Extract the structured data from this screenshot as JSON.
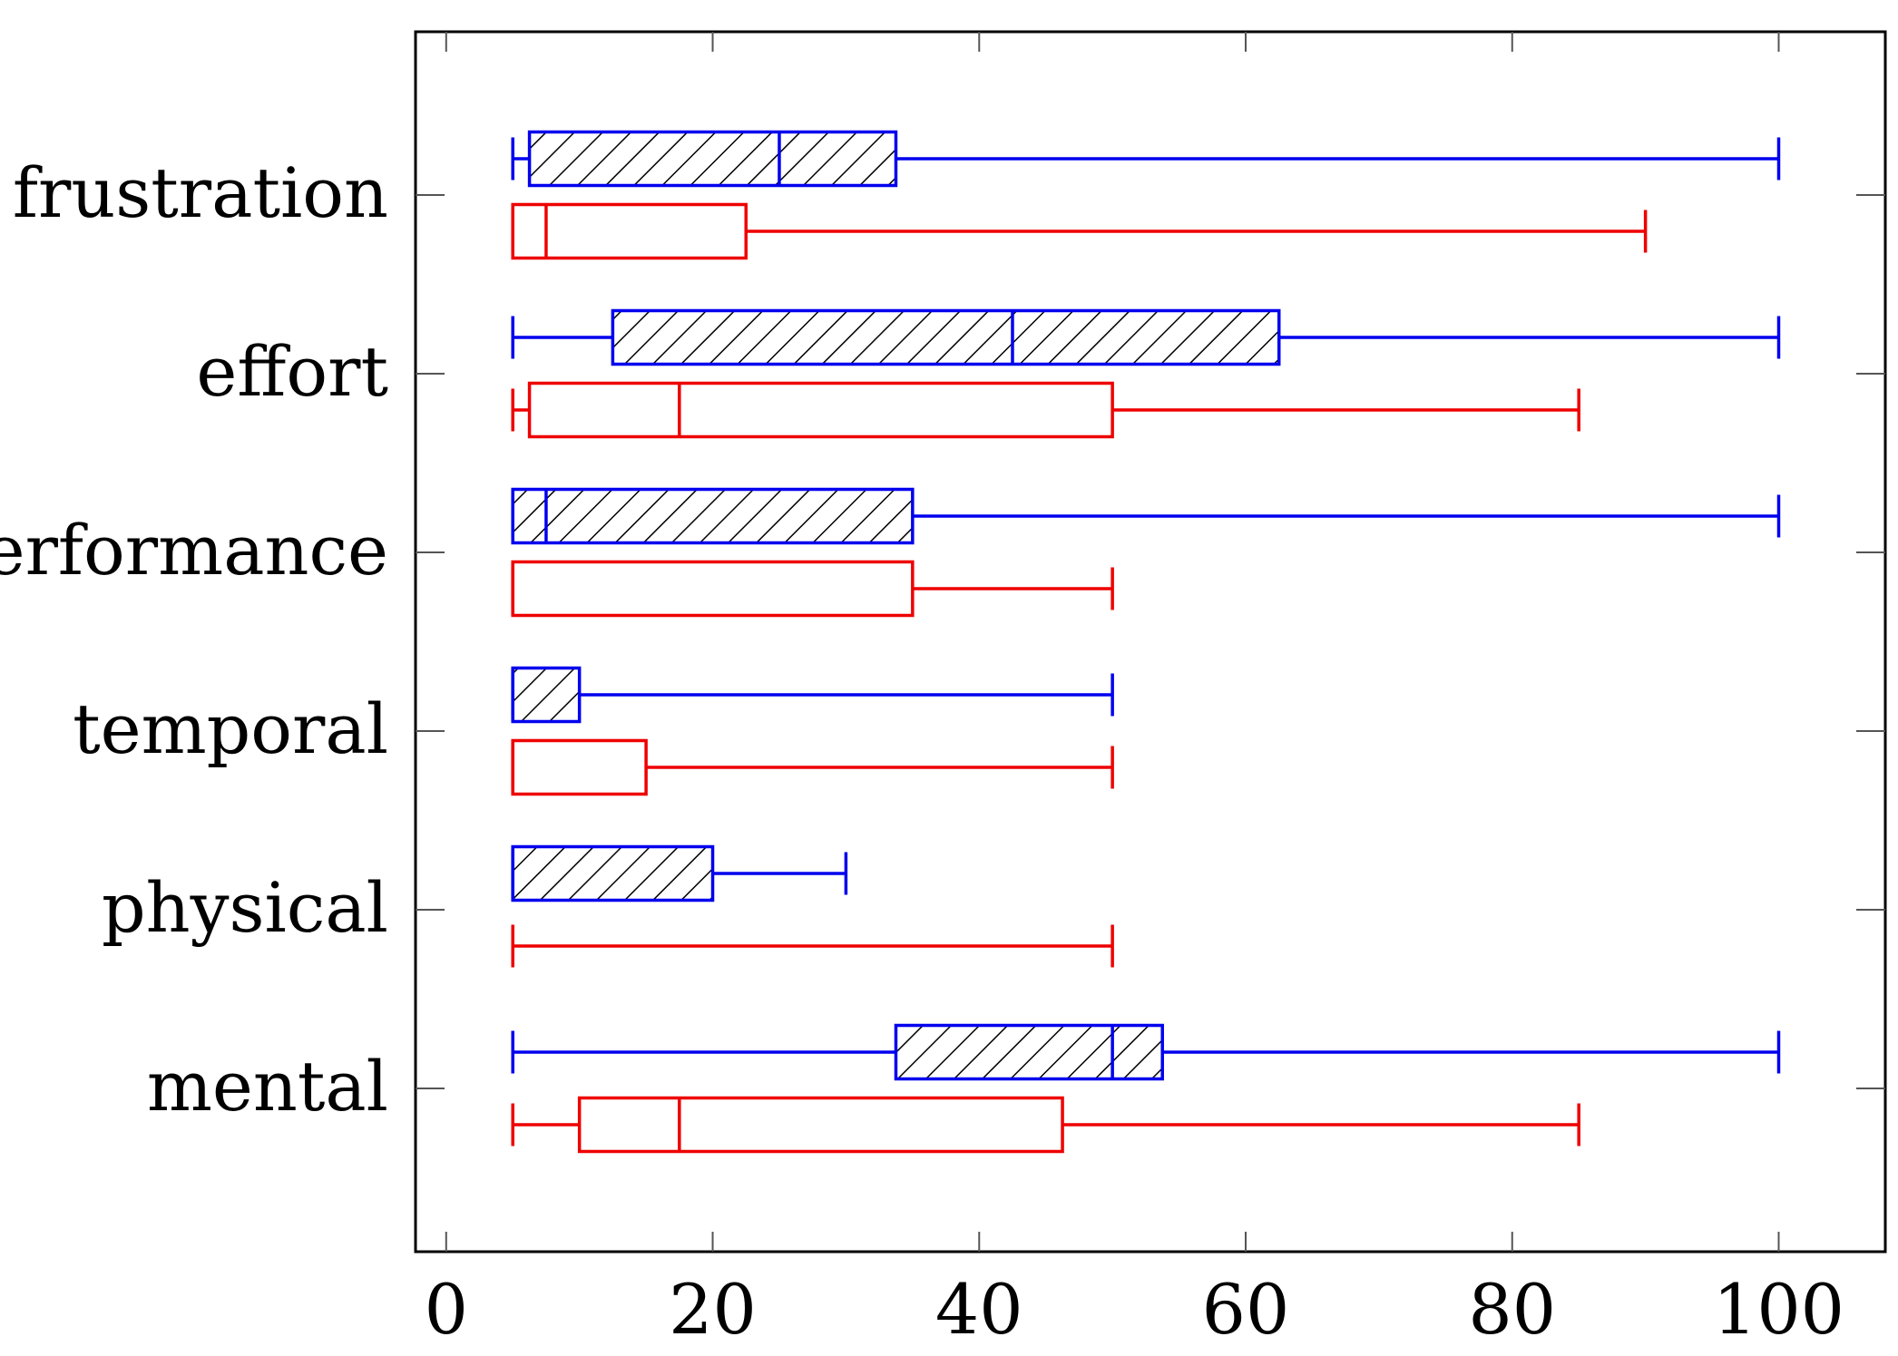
{
  "chart_data": {
    "type": "boxplot",
    "orientation": "horizontal",
    "title": "",
    "xlabel": "",
    "ylabel": "",
    "xlim": [
      -2.3,
      108
    ],
    "xticks": [
      0,
      20,
      40,
      60,
      80,
      100
    ],
    "grid": false,
    "categories": [
      "frustration",
      "effort",
      "performance",
      "temporal",
      "physical",
      "mental"
    ],
    "series": [
      {
        "name": "blue (hatched)",
        "color": "#0000ee",
        "hatched": true,
        "boxes": [
          {
            "category": "frustration",
            "min": 5,
            "q1": 6.25,
            "median": 25,
            "q3": 33.75,
            "max": 100
          },
          {
            "category": "effort",
            "min": 5,
            "q1": 12.5,
            "median": 42.5,
            "q3": 62.5,
            "max": 100
          },
          {
            "category": "performance",
            "min": 5,
            "q1": 5,
            "median": 7.5,
            "q3": 35,
            "max": 100
          },
          {
            "category": "temporal",
            "min": 5,
            "q1": 5,
            "median": 5,
            "q3": 10,
            "max": 50
          },
          {
            "category": "physical",
            "min": 5,
            "q1": 5,
            "median": 5,
            "q3": 20,
            "max": 30
          },
          {
            "category": "mental",
            "min": 5,
            "q1": 33.75,
            "median": 50,
            "q3": 53.75,
            "max": 100
          }
        ]
      },
      {
        "name": "red",
        "color": "#ee0000",
        "hatched": false,
        "boxes": [
          {
            "category": "frustration",
            "min": 5,
            "q1": 5,
            "median": 7.5,
            "q3": 22.5,
            "max": 90
          },
          {
            "category": "effort",
            "min": 5,
            "q1": 6.25,
            "median": 17.5,
            "q3": 50,
            "max": 85
          },
          {
            "category": "performance",
            "min": 5,
            "q1": 5,
            "median": 5,
            "q3": 35,
            "max": 50
          },
          {
            "category": "temporal",
            "min": 5,
            "q1": 5,
            "median": 5,
            "q3": 15,
            "max": 50
          },
          {
            "category": "physical",
            "min": 5,
            "q1": 5,
            "median": 5,
            "q3": 5,
            "max": 50
          },
          {
            "category": "mental",
            "min": 5,
            "q1": 10,
            "median": 17.5,
            "q3": 46.25,
            "max": 85
          }
        ]
      }
    ]
  }
}
